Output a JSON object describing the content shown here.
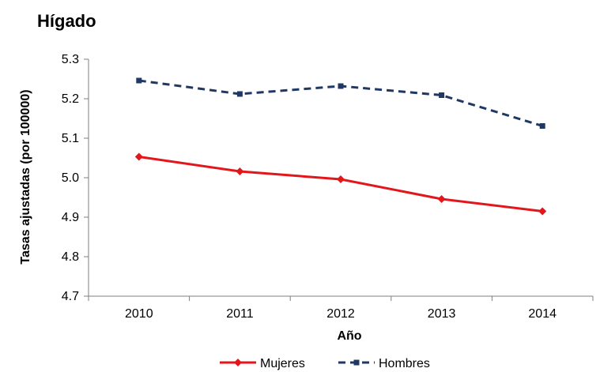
{
  "chart_data": {
    "type": "line",
    "title": "Hígado",
    "xlabel": "Año",
    "ylabel": "Tasas ajustadas (por 100000)",
    "categories": [
      "2010",
      "2011",
      "2012",
      "2013",
      "2014"
    ],
    "ylim": [
      4.7,
      5.3
    ],
    "yticks": [
      "4.7",
      "4.8",
      "4.9",
      "5.0",
      "5.1",
      "5.2",
      "5.3"
    ],
    "grid": false,
    "legend_position": "bottom",
    "series": [
      {
        "name": "Mujeres",
        "values": [
          5.053,
          5.016,
          4.996,
          4.946,
          4.915
        ],
        "color": "#e3171b",
        "style": "solid",
        "marker": "diamond"
      },
      {
        "name": "Hombres",
        "values": [
          5.246,
          5.212,
          5.232,
          5.209,
          5.131
        ],
        "color": "#1f3864",
        "style": "dashed",
        "marker": "square"
      }
    ]
  }
}
